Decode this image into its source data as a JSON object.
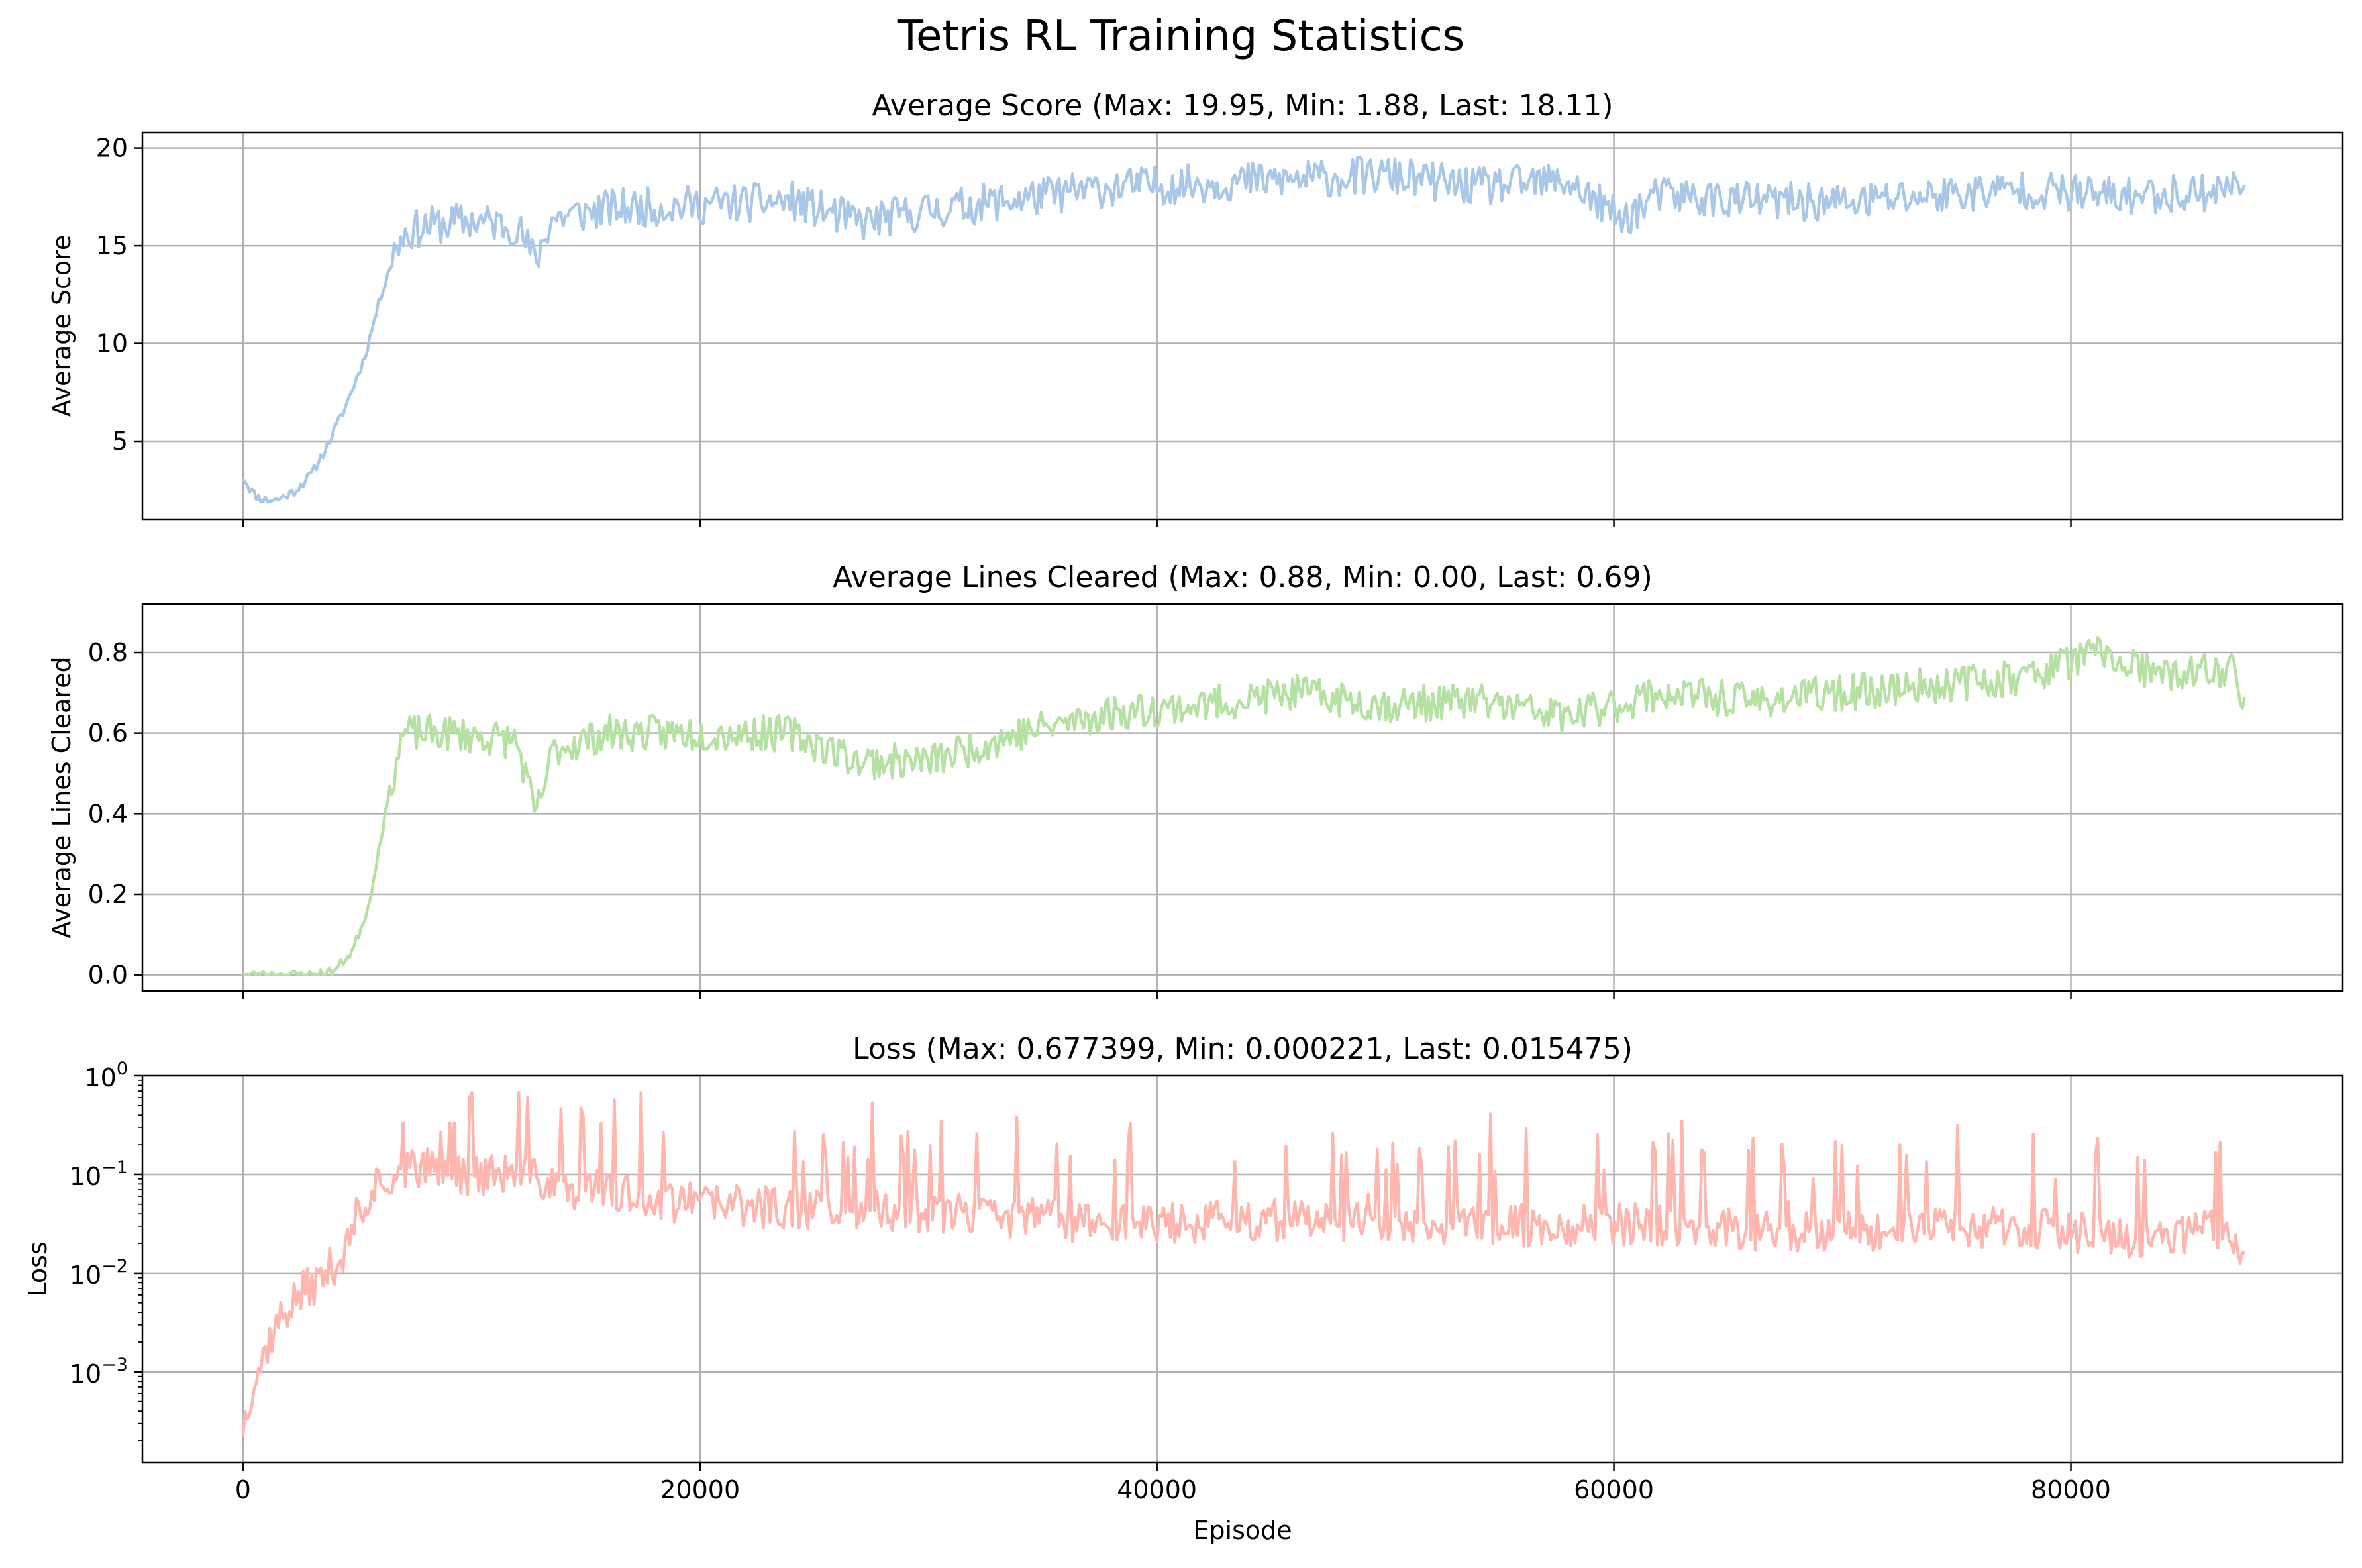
{
  "figure": {
    "title": "Tetris RL Training Statistics"
  },
  "chart_data": [
    {
      "type": "line",
      "title": "Average Score (Max: 19.95, Min: 1.88, Last: 18.11)",
      "xlabel": "",
      "ylabel": "Average Score",
      "xlim": [
        -4400,
        91900
      ],
      "ylim": [
        1.0,
        20.8
      ],
      "xticks": [
        0,
        20000,
        40000,
        60000,
        80000
      ],
      "xtick_labels_visible": false,
      "yticks": [
        5,
        10,
        15,
        20
      ],
      "ytick_labels": [
        "5",
        "10",
        "15",
        "20"
      ],
      "grid": true,
      "color": "#a9c8e8",
      "noise": 1.0,
      "seed": 11,
      "summary": {
        "max": 19.95,
        "min": 1.88,
        "last": 18.11
      },
      "keypoints": [
        [
          0,
          3.2
        ],
        [
          400,
          2.4
        ],
        [
          800,
          2.0
        ],
        [
          1500,
          2.0
        ],
        [
          2200,
          2.4
        ],
        [
          3000,
          3.3
        ],
        [
          3700,
          4.8
        ],
        [
          4500,
          6.8
        ],
        [
          5300,
          9.2
        ],
        [
          6000,
          12.3
        ],
        [
          6600,
          14.6
        ],
        [
          7000,
          15.6
        ],
        [
          8000,
          16.0
        ],
        [
          10000,
          16.3
        ],
        [
          12000,
          16.0
        ],
        [
          12800,
          14.2
        ],
        [
          13500,
          16.4
        ],
        [
          16000,
          16.9
        ],
        [
          20000,
          17.1
        ],
        [
          24000,
          17.3
        ],
        [
          27000,
          16.2
        ],
        [
          30000,
          16.8
        ],
        [
          34000,
          17.4
        ],
        [
          38000,
          18.0
        ],
        [
          42000,
          18.2
        ],
        [
          46000,
          18.4
        ],
        [
          50000,
          18.6
        ],
        [
          54000,
          18.0
        ],
        [
          58000,
          18.3
        ],
        [
          60300,
          16.3
        ],
        [
          62000,
          17.6
        ],
        [
          66000,
          17.3
        ],
        [
          70000,
          17.2
        ],
        [
          74000,
          17.6
        ],
        [
          78000,
          17.9
        ],
        [
          82000,
          17.5
        ],
        [
          86000,
          17.8
        ],
        [
          87600,
          18.11
        ]
      ]
    },
    {
      "type": "line",
      "title": "Average Lines Cleared (Max: 0.88, Min: 0.00, Last: 0.69)",
      "xlabel": "",
      "ylabel": "Average Lines Cleared",
      "xlim": [
        -4400,
        91900
      ],
      "ylim": [
        -0.04,
        0.92
      ],
      "xticks": [
        0,
        20000,
        40000,
        60000,
        80000
      ],
      "xtick_labels_visible": false,
      "yticks": [
        0.0,
        0.2,
        0.4,
        0.6,
        0.8
      ],
      "ytick_labels": [
        "0.0",
        "0.2",
        "0.4",
        "0.6",
        "0.8"
      ],
      "grid": true,
      "color": "#b5e1a3",
      "noise": 0.045,
      "seed": 23,
      "summary": {
        "max": 0.88,
        "min": 0.0,
        "last": 0.69
      },
      "keypoints": [
        [
          0,
          0.0
        ],
        [
          3000,
          0.0
        ],
        [
          4000,
          0.01
        ],
        [
          4800,
          0.06
        ],
        [
          5500,
          0.17
        ],
        [
          6000,
          0.33
        ],
        [
          6500,
          0.48
        ],
        [
          7000,
          0.6
        ],
        [
          9000,
          0.6
        ],
        [
          12000,
          0.58
        ],
        [
          12800,
          0.39
        ],
        [
          13600,
          0.56
        ],
        [
          16000,
          0.6
        ],
        [
          20000,
          0.6
        ],
        [
          24000,
          0.6
        ],
        [
          27000,
          0.53
        ],
        [
          30000,
          0.53
        ],
        [
          34000,
          0.6
        ],
        [
          38000,
          0.65
        ],
        [
          42000,
          0.67
        ],
        [
          46000,
          0.7
        ],
        [
          50000,
          0.67
        ],
        [
          54000,
          0.68
        ],
        [
          58000,
          0.64
        ],
        [
          62000,
          0.7
        ],
        [
          66000,
          0.68
        ],
        [
          70000,
          0.7
        ],
        [
          74000,
          0.72
        ],
        [
          78000,
          0.74
        ],
        [
          81000,
          0.8
        ],
        [
          84000,
          0.74
        ],
        [
          87000,
          0.76
        ],
        [
          87600,
          0.69
        ]
      ]
    },
    {
      "type": "line",
      "title": "Loss (Max: 0.677399, Min: 0.000221, Last: 0.015475)",
      "xlabel": "Episode",
      "ylabel": "Loss",
      "yscale": "log",
      "xlim": [
        -4400,
        91900
      ],
      "ylim": [
        0.00012,
        1.0
      ],
      "xticks": [
        0,
        20000,
        40000,
        60000,
        80000
      ],
      "xtick_labels": [
        "0",
        "20000",
        "40000",
        "60000",
        "80000"
      ],
      "xtick_labels_visible": true,
      "yticks": [
        0.001,
        0.01,
        0.1,
        1
      ],
      "ytick_labels": [
        {
          "base": "10",
          "exp": "−3"
        },
        {
          "base": "10",
          "exp": "−2"
        },
        {
          "base": "10",
          "exp": "−1"
        },
        {
          "base": "10",
          "exp": "0"
        }
      ],
      "grid": true,
      "color": "#ffb6ae",
      "noise": 0.18,
      "spike_prob": 0.09,
      "seed": 37,
      "summary": {
        "max": 0.677399,
        "min": 0.000221,
        "last": 0.015475
      },
      "keypoints": [
        [
          0,
          0.00022
        ],
        [
          300,
          0.0006
        ],
        [
          800,
          0.0012
        ],
        [
          1500,
          0.003
        ],
        [
          2500,
          0.006
        ],
        [
          3500,
          0.009
        ],
        [
          4500,
          0.016
        ],
        [
          5300,
          0.05
        ],
        [
          6000,
          0.09
        ],
        [
          7500,
          0.12
        ],
        [
          9000,
          0.1
        ],
        [
          12000,
          0.1
        ],
        [
          14000,
          0.075
        ],
        [
          17000,
          0.06
        ],
        [
          20000,
          0.05
        ],
        [
          25000,
          0.045
        ],
        [
          30000,
          0.04
        ],
        [
          35000,
          0.035
        ],
        [
          40000,
          0.032
        ],
        [
          45000,
          0.034
        ],
        [
          50000,
          0.032
        ],
        [
          55000,
          0.03
        ],
        [
          60000,
          0.032
        ],
        [
          65000,
          0.028
        ],
        [
          70000,
          0.027
        ],
        [
          75000,
          0.03
        ],
        [
          80000,
          0.026
        ],
        [
          83000,
          0.022
        ],
        [
          86000,
          0.028
        ],
        [
          87600,
          0.0155
        ]
      ]
    }
  ]
}
